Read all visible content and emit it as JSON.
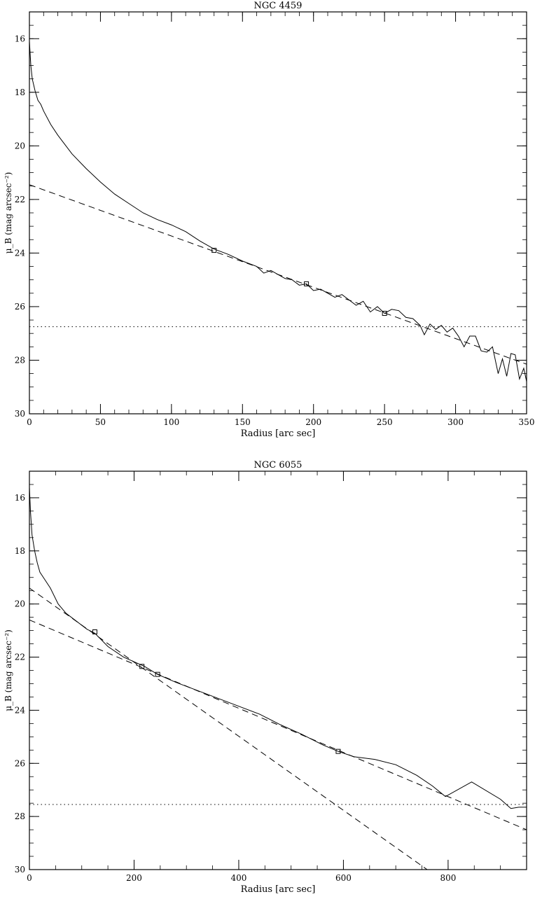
{
  "chart_data": [
    {
      "type": "line",
      "title": "NGC 4459",
      "xlabel": "Radius [arc sec]",
      "ylabel": "μ_B (mag arcsec⁻²)",
      "xlim": [
        0,
        350
      ],
      "ylim": [
        30,
        15
      ],
      "y_inverted": true,
      "grid": false,
      "x_ticks": [
        0,
        50,
        100,
        150,
        200,
        250,
        300,
        350
      ],
      "y_ticks": [
        16,
        18,
        20,
        22,
        24,
        26,
        28,
        30
      ],
      "series": [
        {
          "style": "solid",
          "x": [
            0,
            1,
            2,
            4,
            6,
            8,
            10,
            15,
            20,
            25,
            30,
            40,
            50,
            60,
            70,
            80,
            90,
            100,
            110,
            120,
            130,
            140,
            150,
            160,
            165,
            170,
            175,
            180,
            185,
            190,
            195,
            200,
            205,
            210,
            215,
            220,
            225,
            230,
            235,
            240,
            245,
            250,
            255,
            260,
            265,
            270,
            275,
            278,
            282,
            286,
            290,
            294,
            298,
            302,
            306,
            310,
            314,
            318,
            322,
            326,
            330,
            333,
            336,
            339,
            342,
            345,
            348,
            350
          ],
          "y": [
            16.1,
            17.0,
            17.5,
            17.95,
            18.3,
            18.45,
            18.7,
            19.2,
            19.6,
            19.95,
            20.3,
            20.85,
            21.35,
            21.8,
            22.15,
            22.5,
            22.75,
            22.95,
            23.2,
            23.55,
            23.85,
            24.05,
            24.3,
            24.5,
            24.75,
            24.65,
            24.8,
            24.95,
            25.0,
            25.2,
            25.15,
            25.4,
            25.35,
            25.5,
            25.65,
            25.55,
            25.75,
            25.95,
            25.8,
            26.2,
            26.0,
            26.25,
            26.1,
            26.15,
            26.4,
            26.45,
            26.7,
            27.05,
            26.65,
            26.85,
            26.7,
            26.95,
            26.8,
            27.1,
            27.5,
            27.1,
            27.1,
            27.65,
            27.7,
            27.5,
            28.5,
            27.95,
            28.6,
            27.75,
            27.8,
            28.7,
            28.3,
            28.8
          ]
        },
        {
          "style": "dashed",
          "x": [
            0,
            350
          ],
          "y": [
            21.45,
            28.15
          ]
        },
        {
          "style": "dotted",
          "x": [
            0,
            350
          ],
          "y": [
            26.75,
            26.75
          ]
        }
      ],
      "markers": {
        "style": "open-square",
        "x": [
          130,
          195,
          250
        ],
        "y": [
          23.9,
          25.15,
          26.25
        ]
      }
    },
    {
      "type": "line",
      "title": "NGC 6055",
      "xlabel": "Radius [arc sec]",
      "ylabel": "μ_B (mag arcsec⁻²)",
      "xlim": [
        0,
        950
      ],
      "ylim": [
        30,
        15
      ],
      "y_inverted": true,
      "grid": false,
      "x_ticks": [
        0,
        200,
        400,
        600,
        800
      ],
      "y_ticks": [
        16,
        18,
        20,
        22,
        24,
        26,
        28,
        30
      ],
      "series": [
        {
          "style": "solid",
          "x": [
            0,
            2,
            5,
            10,
            15,
            20,
            30,
            40,
            55,
            70,
            90,
            110,
            125,
            150,
            180,
            220,
            245,
            280,
            320,
            360,
            400,
            440,
            480,
            520,
            560,
            590,
            620,
            660,
            700,
            740,
            770,
            795,
            845,
            900,
            920,
            935,
            950
          ],
          "y": [
            15.6,
            16.5,
            17.4,
            18.0,
            18.45,
            18.8,
            19.1,
            19.4,
            20.0,
            20.35,
            20.65,
            20.95,
            21.1,
            21.6,
            22.0,
            22.35,
            22.65,
            22.95,
            23.25,
            23.55,
            23.85,
            24.15,
            24.55,
            24.9,
            25.3,
            25.55,
            25.75,
            25.85,
            26.05,
            26.45,
            26.85,
            27.25,
            26.7,
            27.35,
            27.7,
            27.65,
            27.65
          ]
        },
        {
          "style": "dashed",
          "x": [
            0,
            760
          ],
          "y": [
            19.4,
            30.0
          ]
        },
        {
          "style": "dashed",
          "x": [
            0,
            950
          ],
          "y": [
            20.6,
            28.5
          ]
        },
        {
          "style": "dotted",
          "x": [
            0,
            950
          ],
          "y": [
            27.55,
            27.55
          ]
        }
      ],
      "markers": {
        "style": "open-square",
        "x": [
          125,
          215,
          245,
          590
        ],
        "y": [
          21.05,
          22.35,
          22.65,
          25.55
        ]
      }
    }
  ]
}
